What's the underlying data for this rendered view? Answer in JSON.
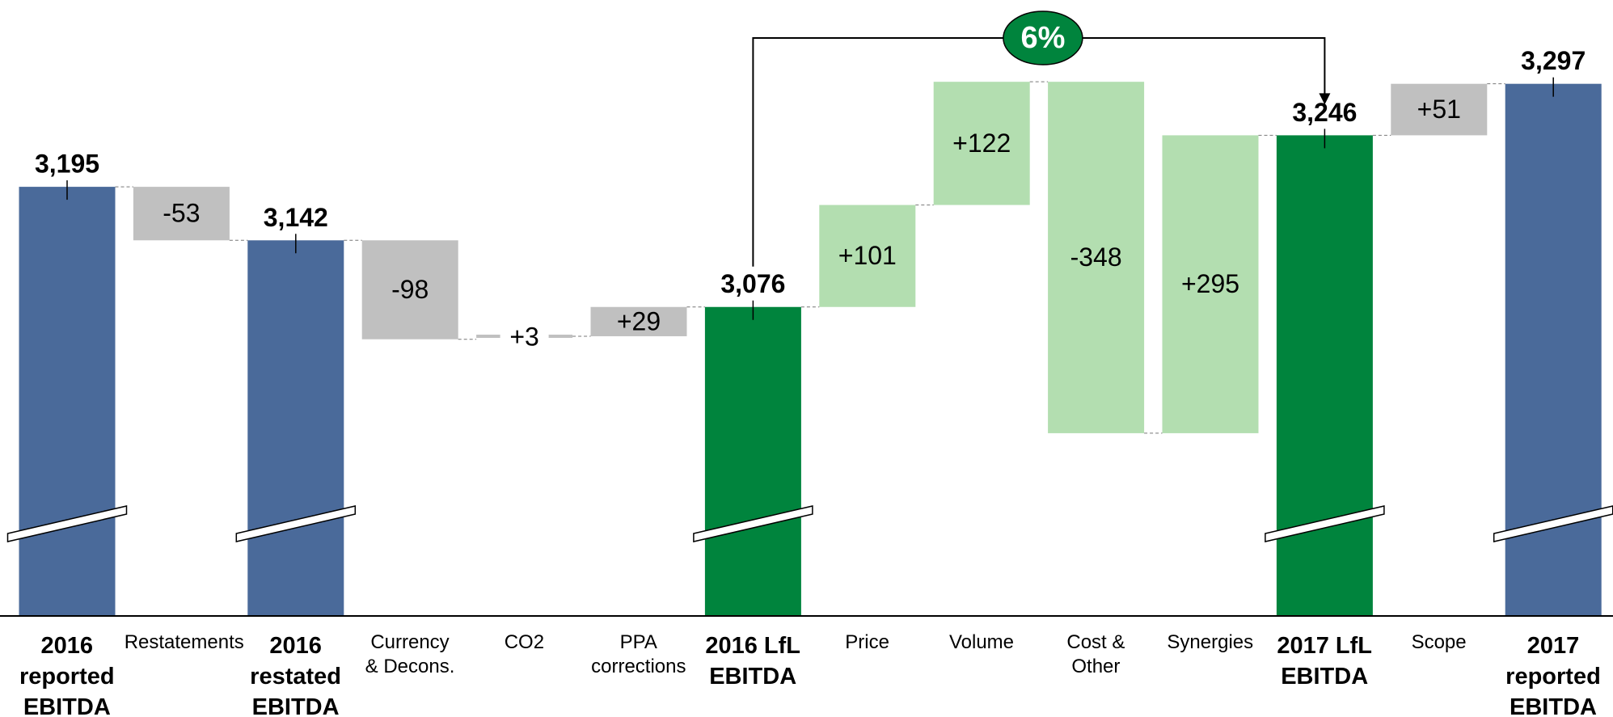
{
  "chart_data": {
    "type": "waterfall",
    "categories": [
      "2016\nreported\nEBITDA",
      "Restatements",
      "2016\nrestated\nEBITDA",
      "Currency\n& Decons.",
      "CO2",
      "PPA\ncorrections",
      "2016 LfL\nEBITDA",
      "Price",
      "Volume",
      "Cost &\nOther",
      "Synergies",
      "2017 LfL\nEBITDA",
      "Scope",
      "2017\nreported\nEBITDA"
    ],
    "values": [
      3195,
      -53,
      3142,
      -98,
      3,
      29,
      3076,
      101,
      122,
      -348,
      295,
      3246,
      51,
      3297
    ],
    "value_labels": [
      "3,195",
      "-53",
      "3,142",
      "-98",
      "+3",
      "+29",
      "3,076",
      "+101",
      "+122",
      "-348",
      "+295",
      "3,246",
      "+51",
      "3,297"
    ],
    "colors": [
      "#4a6a9a",
      "#c0c0c0",
      "#4a6a9a",
      "#c0c0c0",
      "#c0c0c0",
      "#c0c0c0",
      "#00843d",
      "#b3deb0",
      "#b3deb0",
      "#b3deb0",
      "#b3deb0",
      "#00843d",
      "#c0c0c0",
      "#4a6a9a"
    ],
    "ylim": [
      2770,
      3380
    ],
    "annotation": "6%"
  }
}
